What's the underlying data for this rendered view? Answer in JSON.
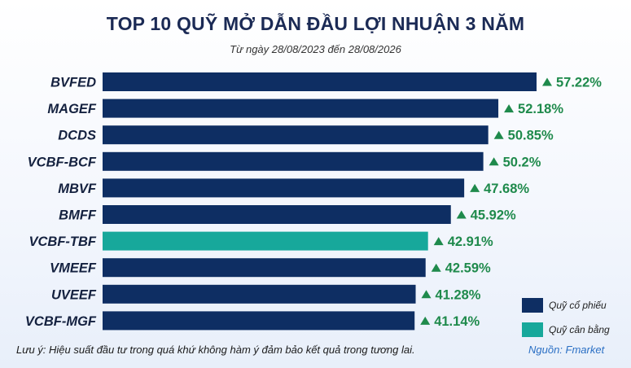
{
  "header": {
    "title": "TOP 10 QUỸ MỞ DẪN ĐẦU LỢI NHUẬN 3 NĂM",
    "subtitle": "Từ ngày 28/08/2023 đến 28/08/2026"
  },
  "chart_data": {
    "type": "bar",
    "orientation": "horizontal",
    "title": "TOP 10 QUỸ MỞ DẪN ĐẦU LỢI NHUẬN 3 NĂM",
    "subtitle": "Từ ngày 28/08/2023 đến 28/08/2026",
    "categories": [
      "BVFED",
      "MAGEF",
      "DCDS",
      "VCBF-BCF",
      "MBVF",
      "BMFF",
      "VCBF-TBF",
      "VMEEF",
      "UVEEF",
      "VCBF-MGF"
    ],
    "values": [
      57.22,
      52.18,
      50.85,
      50.2,
      47.68,
      45.92,
      42.91,
      42.59,
      41.28,
      41.14
    ],
    "value_labels": [
      "57.22%",
      "52.18%",
      "50.85%",
      "50.2%",
      "47.68%",
      "45.92%",
      "42.91%",
      "42.59%",
      "41.28%",
      "41.14%"
    ],
    "groups": [
      "Quỹ cổ phiếu",
      "Quỹ cổ phiếu",
      "Quỹ cổ phiếu",
      "Quỹ cổ phiếu",
      "Quỹ cổ phiếu",
      "Quỹ cổ phiếu",
      "Quỹ cân bằng",
      "Quỹ cổ phiếu",
      "Quỹ cổ phiếu",
      "Quỹ cổ phiếu"
    ],
    "unit": "%",
    "xlim": [
      0,
      57.22
    ],
    "grid": false,
    "legend_position": "bottom-right"
  },
  "legend": [
    {
      "label": "Quỹ cổ phiếu",
      "color": "#0e2e63"
    },
    {
      "label": "Quỹ cân bằng",
      "color": "#17a89b"
    }
  ],
  "colors": {
    "equity": "#0e2e63",
    "balanced": "#17a89b",
    "positive": "#1f8a4c",
    "title": "#1b2a55"
  },
  "footer": {
    "note": "Lưu ý: Hiệu suất đầu tư trong quá khứ không hàm ý đảm bảo kết quả trong tương lai.",
    "source": "Nguồn: Fmarket"
  }
}
